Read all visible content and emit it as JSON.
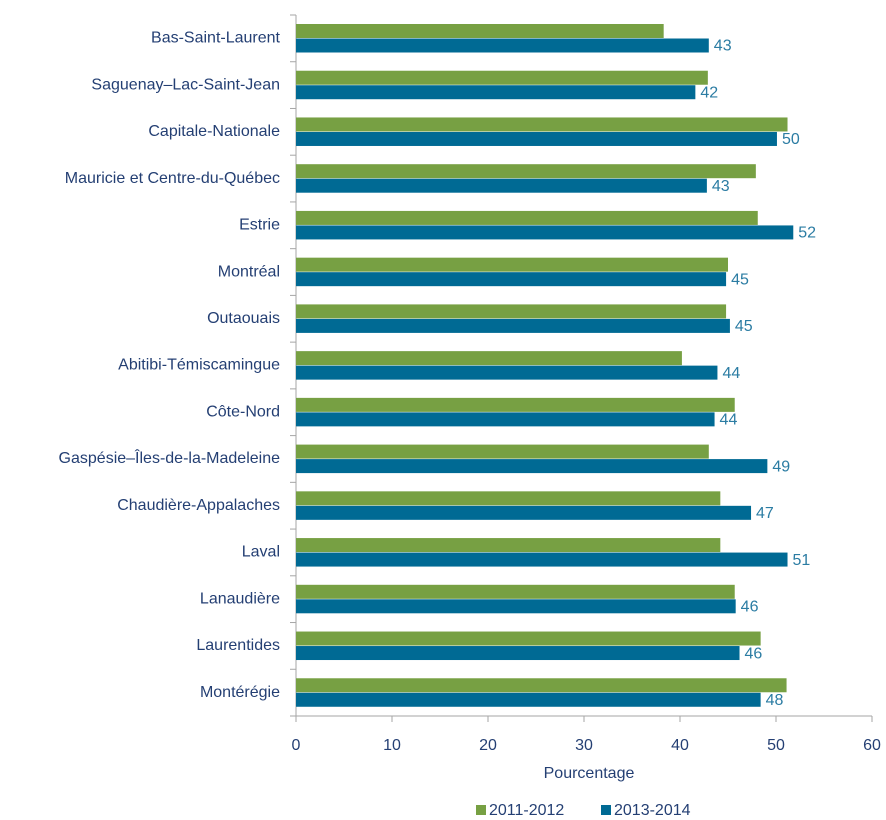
{
  "chart_data": {
    "type": "hbar",
    "categories": [
      "Bas-Saint-Laurent",
      "Saguenay–Lac-Saint-Jean",
      "Capitale-Nationale",
      "Mauricie et Centre-du-Québec",
      "Estrie",
      "Montréal",
      "Outaouais",
      "Abitibi-Témiscamingue",
      "Côte-Nord",
      "Gaspésie–Îles-de-la-Madeleine",
      "Chaudière-Appalaches",
      "Laval",
      "Lanaudière",
      "Laurentides",
      "Montérégie"
    ],
    "series": [
      {
        "name": "2011-2012",
        "color": "#77a043",
        "values": [
          38.3,
          42.9,
          51.2,
          47.9,
          48.1,
          45.0,
          44.8,
          40.2,
          45.7,
          43.0,
          44.2,
          44.2,
          45.7,
          48.4,
          51.1
        ]
      },
      {
        "name": "2013-2014",
        "color": "#006a94",
        "values": [
          43.0,
          41.6,
          50.1,
          42.8,
          51.8,
          44.8,
          45.2,
          43.9,
          43.6,
          49.1,
          47.4,
          51.2,
          45.8,
          46.2,
          48.4
        ],
        "value_labels": [
          "43",
          "42",
          "50",
          "43",
          "52",
          "45",
          "45",
          "44",
          "44",
          "49",
          "47",
          "51",
          "46",
          "46",
          "48"
        ]
      }
    ],
    "xlabel": "Pourcentage",
    "xlim": [
      0,
      60
    ],
    "xticks": [
      0,
      10,
      20,
      30,
      40,
      50,
      60
    ],
    "legend": "bottom"
  }
}
